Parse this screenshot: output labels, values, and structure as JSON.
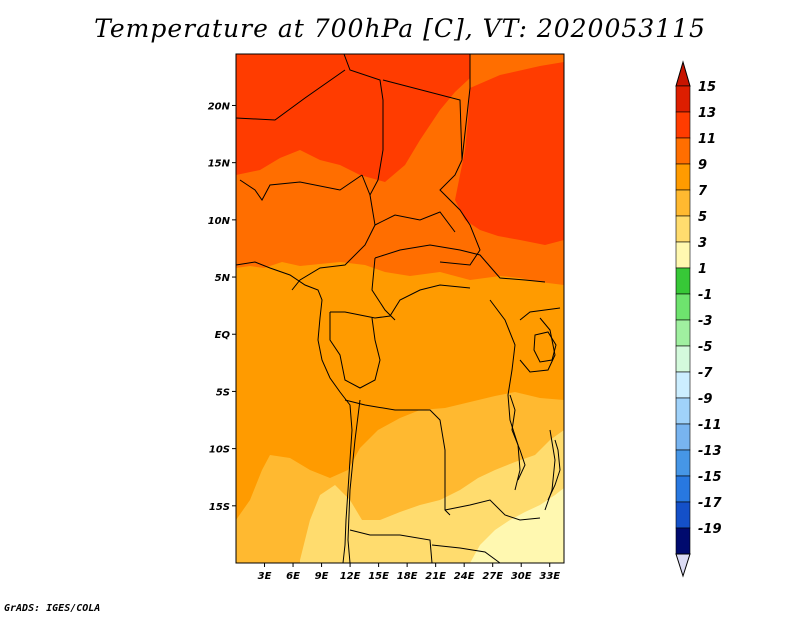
{
  "title": "Temperature at 700hPa [C], VT: 2020053115",
  "credit": "GrADS: IGES/COLA",
  "map": {
    "lat_ticks": [
      {
        "label": "20N",
        "value": 20
      },
      {
        "label": "15N",
        "value": 15
      },
      {
        "label": "10N",
        "value": 10
      },
      {
        "label": "5N",
        "value": 5
      },
      {
        "label": "EQ",
        "value": 0
      },
      {
        "label": "5S",
        "value": -5
      },
      {
        "label": "10S",
        "value": -10
      },
      {
        "label": "15S",
        "value": -15
      }
    ],
    "lon_ticks": [
      {
        "label": "3E",
        "value": 3
      },
      {
        "label": "6E",
        "value": 6
      },
      {
        "label": "9E",
        "value": 9
      },
      {
        "label": "12E",
        "value": 12
      },
      {
        "label": "15E",
        "value": 15
      },
      {
        "label": "18E",
        "value": 18
      },
      {
        "label": "21E",
        "value": 21
      },
      {
        "label": "24E",
        "value": 24
      },
      {
        "label": "27E",
        "value": 27
      },
      {
        "label": "30E",
        "value": 30
      },
      {
        "label": "33E",
        "value": 33
      }
    ],
    "lon_range": [
      0,
      34.5
    ],
    "lat_range": [
      -20,
      24.5
    ]
  },
  "colorbar": {
    "levels": [
      {
        "label": "15",
        "color": "#dd1e00"
      },
      {
        "label": "13",
        "color": "#ff3c00"
      },
      {
        "label": "11",
        "color": "#ff6e00"
      },
      {
        "label": "9",
        "color": "#ff9b00"
      },
      {
        "label": "7",
        "color": "#ffb930"
      },
      {
        "label": "5",
        "color": "#ffdc6e"
      },
      {
        "label": "3",
        "color": "#fff8b0"
      },
      {
        "label": "1",
        "color": "#37c837"
      },
      {
        "label": "-1",
        "color": "#6ee36e"
      },
      {
        "label": "-3",
        "color": "#a0f0a0"
      },
      {
        "label": "-5",
        "color": "#d4fadc"
      },
      {
        "label": "-7",
        "color": "#cceeff"
      },
      {
        "label": "-9",
        "color": "#a0d2fa"
      },
      {
        "label": "-11",
        "color": "#78b4f0"
      },
      {
        "label": "-13",
        "color": "#4696e6"
      },
      {
        "label": "-15",
        "color": "#2878e0"
      },
      {
        "label": "-17",
        "color": "#1450c8"
      },
      {
        "label": "-19",
        "color": "#0a32a0"
      }
    ],
    "top_cap_color": "#c81400",
    "bottom_cap_color": "#dcdcf5",
    "navy_color": "#000a6e"
  },
  "field_colors": {
    "hot": "#ff3c00",
    "warm": "#ff6e00",
    "mid": "#ff9b00",
    "mild": "#ffb930",
    "cool": "#ffdc6e",
    "coolest": "#fff8b0"
  }
}
